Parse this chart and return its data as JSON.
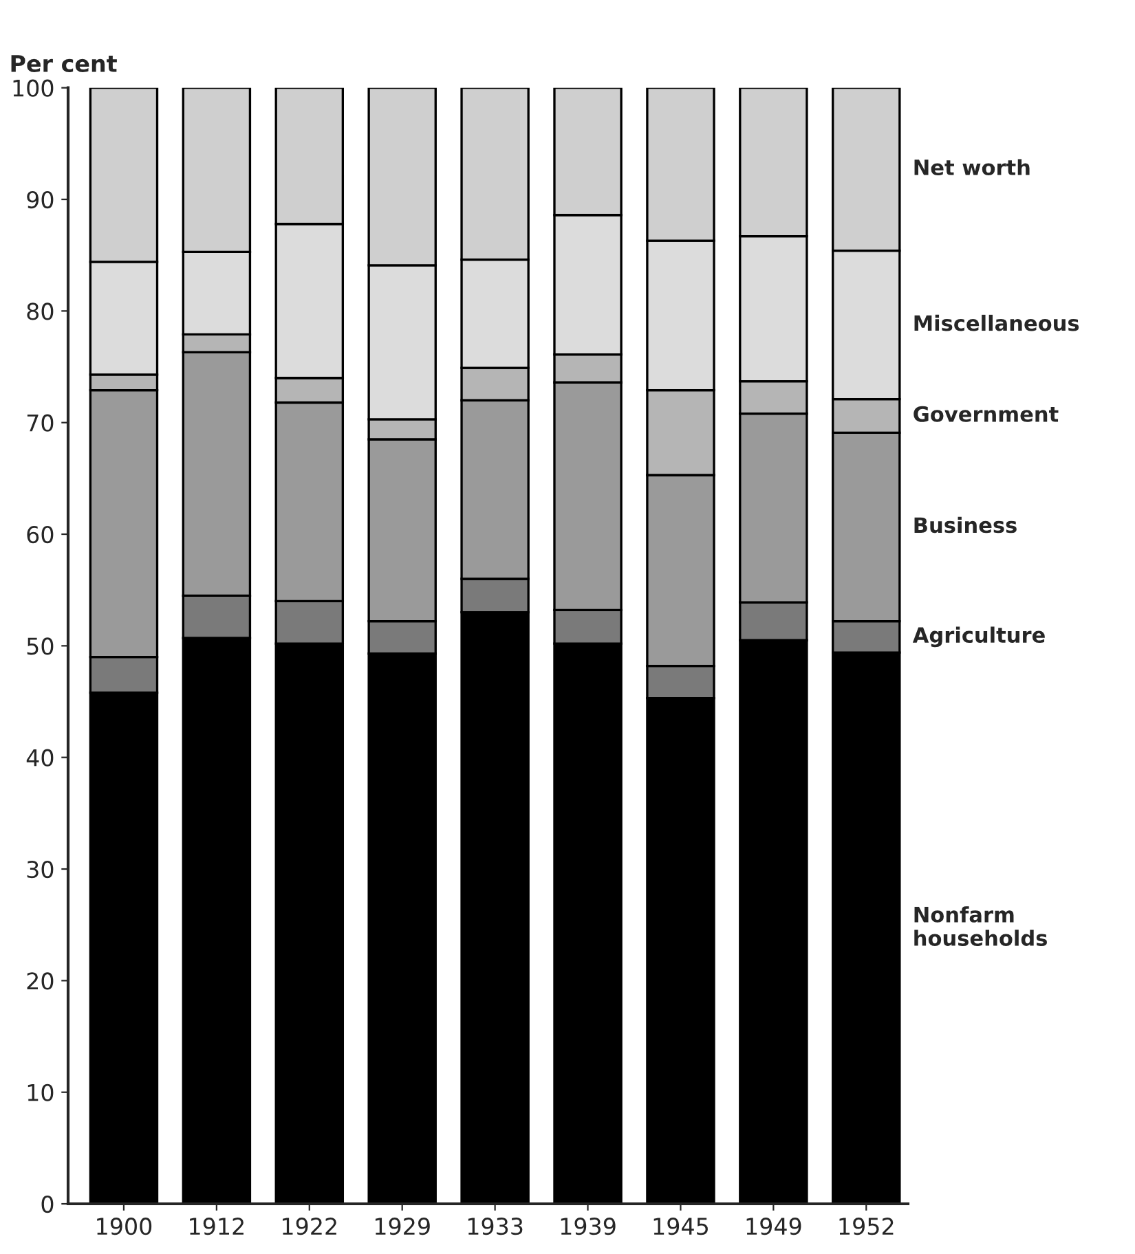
{
  "chart_data": {
    "type": "bar",
    "stacked": true,
    "ylabel": "Per cent",
    "categories": [
      "1900",
      "1912",
      "1922",
      "1929",
      "1933",
      "1939",
      "1945",
      "1949",
      "1952"
    ],
    "ylim": [
      0,
      100
    ],
    "yticks": [
      0,
      10,
      20,
      30,
      40,
      50,
      60,
      70,
      80,
      90,
      100
    ],
    "grid": false,
    "legend": false,
    "series": [
      {
        "name": "Nonfarm households",
        "color": "#000000",
        "values": [
          45.8,
          50.7,
          50.2,
          49.3,
          53.0,
          50.2,
          45.3,
          50.5,
          49.4
        ]
      },
      {
        "name": "Agriculture",
        "color": "#7a7a7a",
        "values": [
          3.2,
          3.8,
          3.8,
          2.9,
          3.0,
          3.0,
          2.9,
          3.4,
          2.8
        ]
      },
      {
        "name": "Business",
        "color": "#9a9a9a",
        "values": [
          23.9,
          21.8,
          17.8,
          16.3,
          16.0,
          20.4,
          17.1,
          16.9,
          16.9
        ]
      },
      {
        "name": "Government",
        "color": "#b5b5b5",
        "values": [
          1.4,
          1.6,
          2.2,
          1.8,
          2.9,
          2.5,
          7.6,
          2.9,
          3.0
        ]
      },
      {
        "name": "Miscellaneous",
        "color": "#dcdcdc",
        "values": [
          10.1,
          7.4,
          13.8,
          13.8,
          9.7,
          12.5,
          13.4,
          13.0,
          13.3
        ]
      },
      {
        "name": "Net worth",
        "color": "#cfcfcf",
        "values": [
          15.6,
          14.7,
          12.2,
          15.9,
          15.4,
          11.4,
          13.7,
          13.3,
          14.6
        ]
      }
    ]
  }
}
